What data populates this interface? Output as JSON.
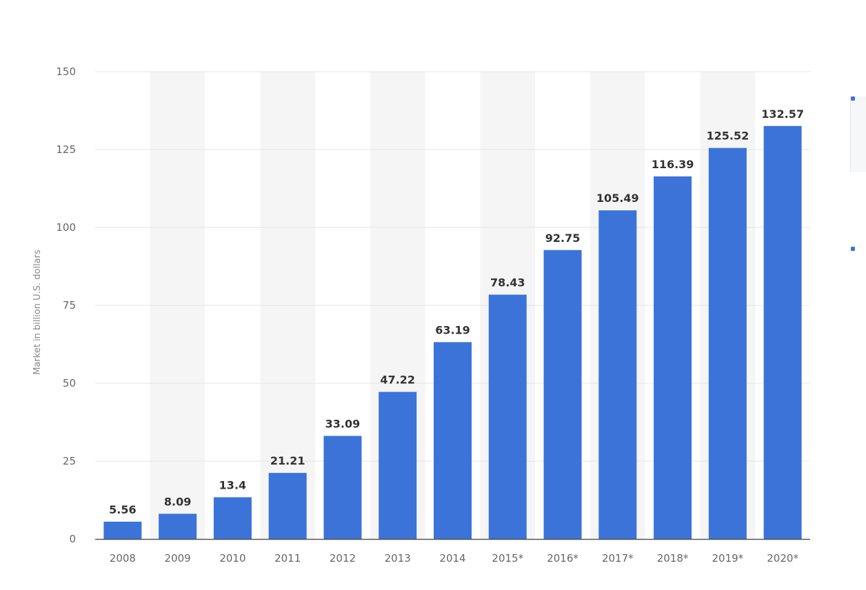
{
  "chart_data": {
    "type": "bar",
    "categories": [
      "2008",
      "2009",
      "2010",
      "2011",
      "2012",
      "2013",
      "2014",
      "2015*",
      "2016*",
      "2017*",
      "2018*",
      "2019*",
      "2020*"
    ],
    "values": [
      5.56,
      8.09,
      13.4,
      21.21,
      33.09,
      47.22,
      63.19,
      78.43,
      92.75,
      105.49,
      116.39,
      125.52,
      132.57
    ],
    "value_labels": [
      "5.56",
      "8.09",
      "13.4",
      "21.21",
      "33.09",
      "47.22",
      "63.19",
      "78.43",
      "92.75",
      "105.49",
      "116.39",
      "125.52",
      "132.57"
    ],
    "ylabel": "Market in billion U.S. dollars",
    "ylim": [
      0,
      150
    ],
    "yticks": [
      0,
      25,
      50,
      75,
      100,
      125,
      150
    ],
    "grid": true,
    "legend": "none",
    "bar_color": "#3b73d9",
    "band_color": "#f5f5f5",
    "grid_color": "#e4e4e4",
    "axis_color": "#555555"
  }
}
